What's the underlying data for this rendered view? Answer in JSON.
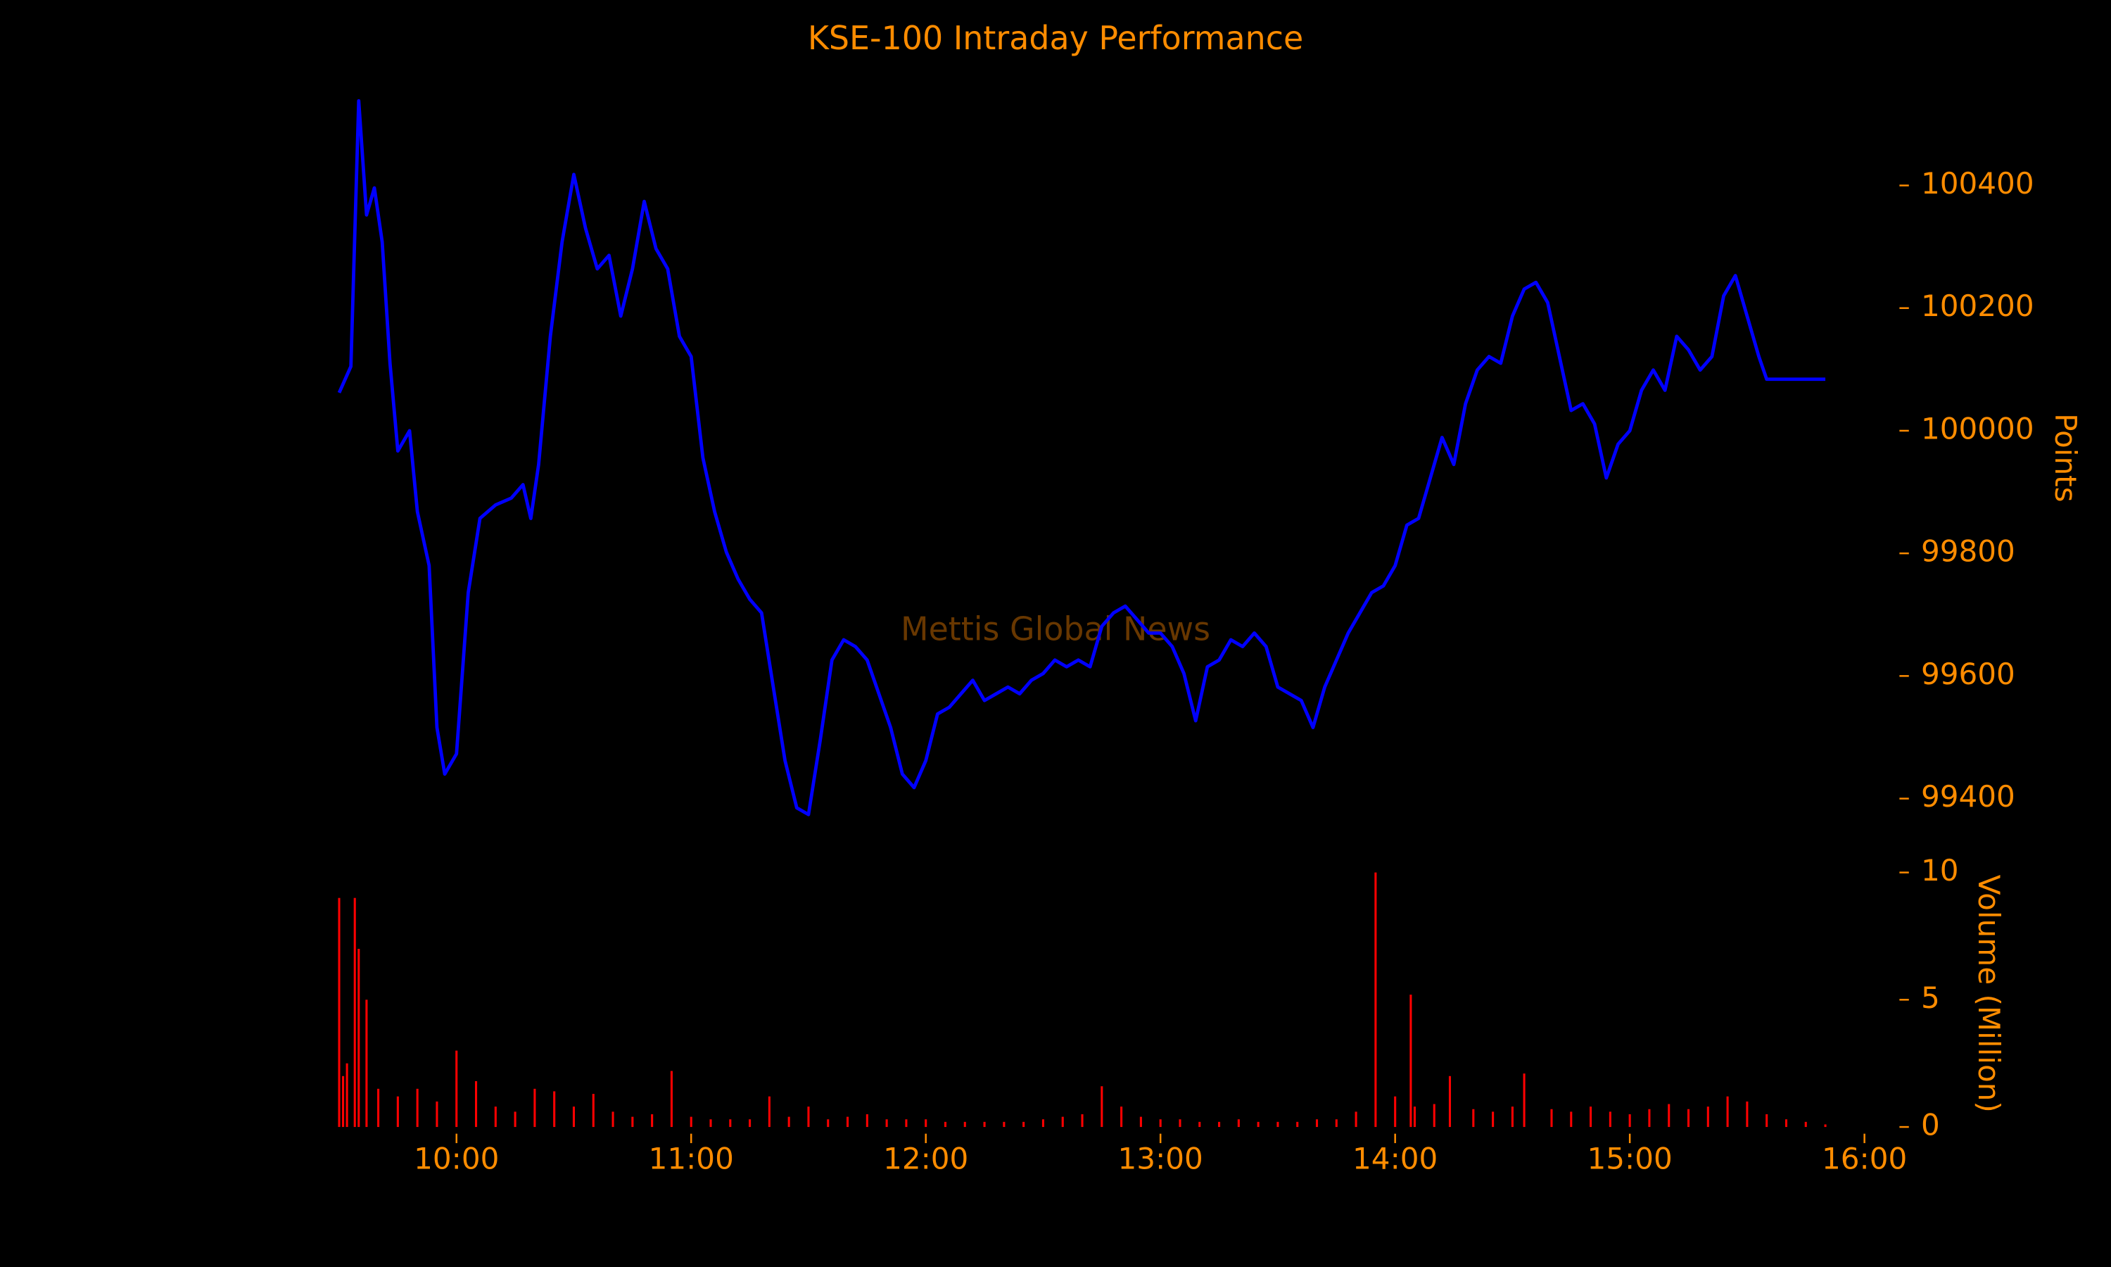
{
  "chart_data": [
    {
      "type": "line",
      "title": "KSE-100 Intraday Performance",
      "ylabel": "Points",
      "annotation": "Mettis Global News",
      "x": [
        "09:30",
        "09:33",
        "09:35",
        "09:37",
        "09:39",
        "09:41",
        "09:43",
        "09:45",
        "09:48",
        "09:50",
        "09:53",
        "09:55",
        "09:57",
        "10:00",
        "10:03",
        "10:06",
        "10:10",
        "10:14",
        "10:17",
        "10:19",
        "10:21",
        "10:24",
        "10:27",
        "10:30",
        "10:33",
        "10:36",
        "10:39",
        "10:42",
        "10:45",
        "10:48",
        "10:51",
        "10:54",
        "10:57",
        "11:00",
        "11:03",
        "11:06",
        "11:09",
        "11:12",
        "11:15",
        "11:18",
        "11:21",
        "11:24",
        "11:27",
        "11:30",
        "11:33",
        "11:36",
        "11:39",
        "11:42",
        "11:45",
        "11:48",
        "11:51",
        "11:54",
        "11:57",
        "12:00",
        "12:03",
        "12:06",
        "12:09",
        "12:12",
        "12:15",
        "12:18",
        "12:21",
        "12:24",
        "12:27",
        "12:30",
        "12:33",
        "12:36",
        "12:39",
        "12:42",
        "12:45",
        "12:48",
        "12:51",
        "12:54",
        "12:57",
        "13:00",
        "13:03",
        "13:06",
        "13:09",
        "13:12",
        "13:15",
        "13:18",
        "13:21",
        "13:24",
        "13:27",
        "13:30",
        "13:33",
        "13:36",
        "13:39",
        "13:42",
        "13:45",
        "13:48",
        "13:51",
        "13:54",
        "13:57",
        "14:00",
        "14:03",
        "14:06",
        "14:09",
        "14:12",
        "14:15",
        "14:18",
        "14:21",
        "14:24",
        "14:27",
        "14:30",
        "14:33",
        "14:36",
        "14:39",
        "14:42",
        "14:45",
        "14:48",
        "14:51",
        "14:54",
        "14:57",
        "15:00",
        "15:03",
        "15:06",
        "15:09",
        "15:12",
        "15:15",
        "15:18",
        "15:21",
        "15:24",
        "15:27",
        "15:30",
        "15:33",
        "15:35",
        "15:50"
      ],
      "series": [
        {
          "name": "KSE-100",
          "color": "#0000ff",
          "values": [
            100062,
            100105,
            100538,
            100352,
            100396,
            100308,
            100110,
            99967,
            100000,
            99868,
            99780,
            99516,
            99440,
            99473,
            99736,
            99857,
            99879,
            99890,
            99912,
            99857,
            99945,
            100154,
            100308,
            100418,
            100330,
            100264,
            100286,
            100187,
            100264,
            100374,
            100297,
            100264,
            100154,
            100121,
            99956,
            99868,
            99802,
            99758,
            99725,
            99703,
            99582,
            99462,
            99385,
            99374,
            99495,
            99626,
            99659,
            99648,
            99626,
            99571,
            99516,
            99440,
            99418,
            99462,
            99538,
            99549,
            99571,
            99593,
            99560,
            99571,
            99582,
            99571,
            99593,
            99604,
            99626,
            99615,
            99626,
            99615,
            99681,
            99703,
            99714,
            99692,
            99670,
            99670,
            99648,
            99604,
            99527,
            99615,
            99626,
            99659,
            99648,
            99670,
            99648,
            99582,
            99571,
            99560,
            99516,
            99582,
            99626,
            99670,
            99703,
            99736,
            99747,
            99780,
            99846,
            99857,
            99923,
            99989,
            99945,
            100044,
            100099,
            100121,
            100110,
            100187,
            100231,
            100242,
            100209,
            100121,
            100033,
            100044,
            100011,
            99923,
            99978,
            100000,
            100066,
            100099,
            100066,
            100154,
            100132,
            100099,
            100121,
            100220,
            100253,
            100187,
            100121,
            100084,
            100084
          ]
        }
      ],
      "xlim": [
        "09:28",
        "16:00"
      ],
      "ylim": [
        99330,
        100540
      ],
      "yticks": [
        99400,
        99600,
        99800,
        100000,
        100200,
        100400
      ]
    },
    {
      "type": "bar",
      "ylabel": "Volume (Million)",
      "color": "#ff0000",
      "x": [
        "09:30",
        "09:31",
        "09:32",
        "09:34",
        "09:35",
        "09:37",
        "09:40",
        "09:45",
        "09:50",
        "09:55",
        "10:00",
        "10:05",
        "10:10",
        "10:15",
        "10:20",
        "10:25",
        "10:30",
        "10:35",
        "10:40",
        "10:45",
        "10:50",
        "10:55",
        "11:00",
        "11:05",
        "11:10",
        "11:15",
        "11:20",
        "11:25",
        "11:30",
        "11:35",
        "11:40",
        "11:45",
        "11:50",
        "11:55",
        "12:00",
        "12:05",
        "12:10",
        "12:15",
        "12:20",
        "12:25",
        "12:30",
        "12:35",
        "12:40",
        "12:45",
        "12:50",
        "12:55",
        "13:00",
        "13:05",
        "13:10",
        "13:15",
        "13:20",
        "13:25",
        "13:30",
        "13:35",
        "13:40",
        "13:45",
        "13:50",
        "13:55",
        "14:00",
        "14:04",
        "14:05",
        "14:10",
        "14:14",
        "14:20",
        "14:25",
        "14:30",
        "14:33",
        "14:40",
        "14:45",
        "14:50",
        "14:55",
        "15:00",
        "15:05",
        "15:10",
        "15:15",
        "15:20",
        "15:25",
        "15:30",
        "15:35",
        "15:40",
        "15:45",
        "15:50"
      ],
      "values": [
        9.0,
        2.0,
        2.5,
        9.0,
        7.0,
        5.0,
        1.5,
        1.2,
        1.5,
        1.0,
        3.0,
        1.8,
        0.8,
        0.6,
        1.5,
        1.4,
        0.8,
        1.3,
        0.6,
        0.4,
        0.5,
        2.2,
        0.4,
        0.3,
        0.3,
        0.3,
        1.2,
        0.4,
        0.8,
        0.3,
        0.4,
        0.5,
        0.3,
        0.3,
        0.3,
        0.2,
        0.2,
        0.2,
        0.2,
        0.2,
        0.3,
        0.4,
        0.5,
        1.6,
        0.8,
        0.4,
        0.3,
        0.3,
        0.2,
        0.2,
        0.3,
        0.2,
        0.2,
        0.2,
        0.3,
        0.3,
        0.6,
        10.0,
        1.2,
        5.2,
        0.8,
        0.9,
        2.0,
        0.7,
        0.6,
        0.8,
        2.1,
        0.7,
        0.6,
        0.8,
        0.6,
        0.5,
        0.7,
        0.9,
        0.7,
        0.8,
        1.2,
        1.0,
        0.5,
        0.3,
        0.2,
        0.1
      ],
      "xlim": [
        "09:28",
        "16:00"
      ],
      "xticks": [
        "10:00",
        "11:00",
        "12:00",
        "13:00",
        "14:00",
        "15:00",
        "16:00"
      ],
      "ylim": [
        0,
        10
      ],
      "yticks": [
        0,
        5,
        10
      ]
    }
  ]
}
